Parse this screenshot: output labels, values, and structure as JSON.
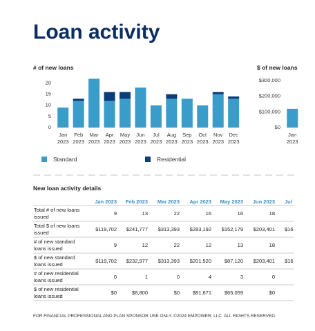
{
  "title": "Loan activity",
  "chart_data": [
    {
      "type": "bar",
      "stacked": true,
      "title": "# of new loans",
      "categories": [
        "Jan 2023",
        "Feb 2023",
        "Mar 2023",
        "Apr 2023",
        "May 2023",
        "Jun 2023",
        "Jul 2023",
        "Aug 2023",
        "Sep 2023",
        "Oct 2023",
        "Nov 2023",
        "Dec 2023"
      ],
      "series": [
        {
          "name": "Standard",
          "color": "#3a9cc9",
          "values": [
            9,
            12,
            22,
            12,
            13,
            18,
            10,
            13,
            13,
            10,
            15,
            13
          ]
        },
        {
          "name": "Residential",
          "color": "#0b3d7a",
          "values": [
            0,
            1,
            0,
            4,
            3,
            0,
            0,
            2,
            0,
            0,
            1,
            1
          ]
        }
      ],
      "ylim": [
        0,
        22
      ],
      "yticks": [
        0,
        5,
        10,
        15,
        20
      ],
      "legend": "bottom"
    },
    {
      "type": "bar",
      "title": "$ of new loans",
      "categories": [
        "Jan 2023"
      ],
      "values": [
        119702
      ],
      "color": "#3a9cc9",
      "ylim": [
        0,
        320000
      ],
      "yticks": [
        {
          "value": 0,
          "label": "$0"
        },
        {
          "value": 100000,
          "label": "$100,000"
        },
        {
          "value": 200000,
          "label": "$200,000"
        },
        {
          "value": 300000,
          "label": "$300,000"
        }
      ]
    }
  ],
  "table": {
    "title": "New loan activity details",
    "columns": [
      "Jan 2023",
      "Feb 2023",
      "Mar 2023",
      "Apr 2023",
      "May 2023",
      "Jun 2023"
    ],
    "rows": [
      {
        "label": "Total # of new loans issued",
        "cells": [
          "9",
          "13",
          "22",
          "16",
          "16",
          "18"
        ]
      },
      {
        "label": "Total $ of new loans issued",
        "cells": [
          "$119,702",
          "$241,777",
          "$313,393",
          "$283,192",
          "$152,179",
          "$203,401"
        ]
      },
      {
        "label": "# of new standard loans issued",
        "cells": [
          "9",
          "12",
          "22",
          "12",
          "13",
          "18"
        ]
      },
      {
        "label": "$ of new standard loans issued",
        "cells": [
          "$119,702",
          "$232,977",
          "$313,393",
          "$201,520",
          "$87,120",
          "$203,401"
        ]
      },
      {
        "label": "# of new residential loans issued",
        "cells": [
          "0",
          "1",
          "0",
          "4",
          "3",
          "0"
        ]
      },
      {
        "label": "$ of new residential loans issued",
        "cells": [
          "$0",
          "$8,800",
          "$0",
          "$81,671",
          "$65,059",
          "$0"
        ]
      }
    ],
    "clipped_column": {
      "header": "Jul",
      "row_1": "$16",
      "row_3": "$16"
    }
  },
  "footer": "FOR FINANCIAL PROFESSIONAL AND PLAN SPONSOR USE ONLY. ©2024 EMPOWER, LLC. ALL RIGHTS RESERVED."
}
